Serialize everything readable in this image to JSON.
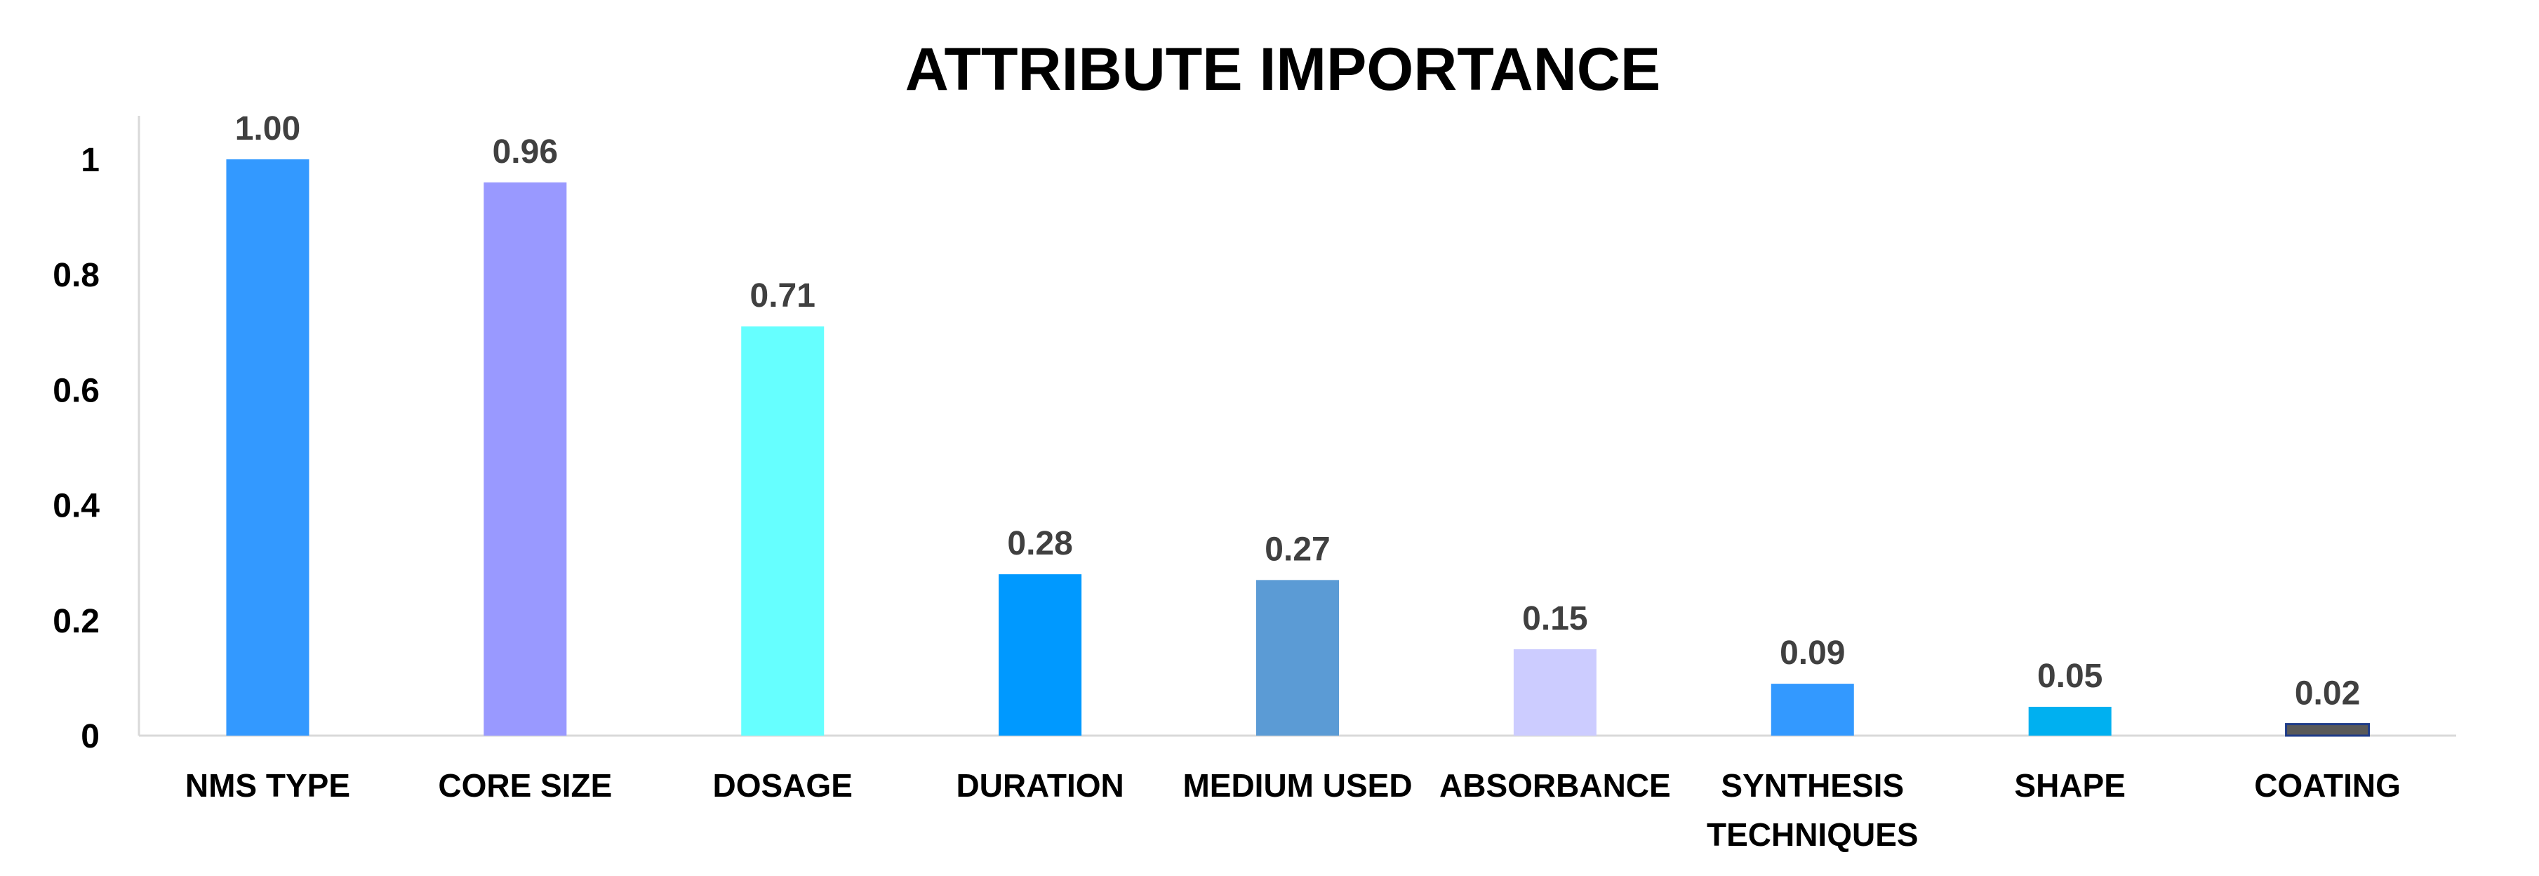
{
  "chart_data": {
    "type": "bar",
    "title": "ATTRIBUTE IMPORTANCE",
    "xlabel": "",
    "ylabel": "",
    "ylim": [
      0,
      1
    ],
    "yticks": [
      "0",
      "0.2",
      "0.4",
      "0.6",
      "0.8",
      "1"
    ],
    "grid": false,
    "legend": "none",
    "categories": [
      [
        "NMS TYPE"
      ],
      [
        "CORE SIZE"
      ],
      [
        "DOSAGE"
      ],
      [
        "DURATION"
      ],
      [
        "MEDIUM USED"
      ],
      [
        "ABSORBANCE"
      ],
      [
        "SYNTHESIS",
        "TECHNIQUES"
      ],
      [
        "SHAPE"
      ],
      [
        "COATING"
      ]
    ],
    "values": [
      1.0,
      0.96,
      0.71,
      0.28,
      0.27,
      0.15,
      0.09,
      0.05,
      0.02
    ],
    "data_labels": [
      "1.00",
      "0.96",
      "0.71",
      "0.28",
      "0.27",
      "0.15",
      "0.09",
      "0.05",
      "0.02"
    ],
    "colors": [
      "#3399FF",
      "#9999FF",
      "#66FFFF",
      "#0099FF",
      "#5B9BD5",
      "#CCCCFF",
      "#3399FF",
      "#00B0F0",
      "#595959"
    ]
  }
}
